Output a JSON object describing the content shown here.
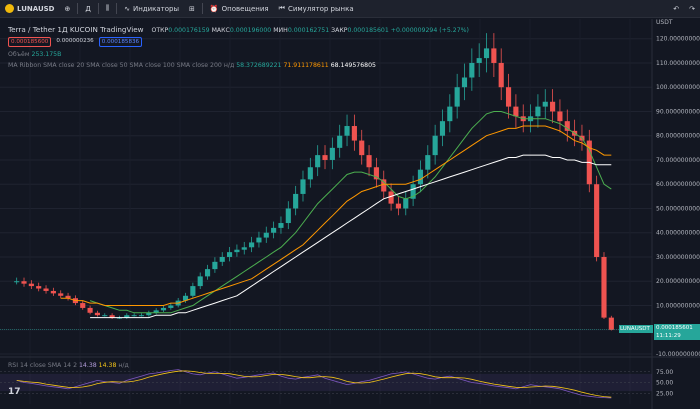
{
  "toolbar": {
    "symbol": "LUNAUSD",
    "interval": "Д",
    "indicators_label": "Индикаторы",
    "alerts_label": "Оповещения",
    "replay_label": "Симулятор рынка"
  },
  "legend": {
    "title": "Terra / Tether  1Д  KUCOIN  TradingView",
    "open_label": "ОТКР",
    "open": "0.000176159",
    "high_label": "МАКС",
    "high": "0.000196000",
    "low_label": "МИН",
    "low": "0.000162751",
    "close_label": "ЗАКР",
    "close": "0.000185601",
    "change": "+0.000009294 (+5.27%)",
    "box_sell": "0.000185600",
    "box_spread": "0.000000236",
    "box_buy": "0.000185836",
    "volume_label": "Объём",
    "volume": "253.175B",
    "ma_label": "MA Ribbon SMA close 20 SMA close 50 SMA close 100 SMA close 200",
    "ma_na": "н/д",
    "ma_50": "58.372689221",
    "ma_100": "71.911178611",
    "ma_200": "68.149576805",
    "rsi_label": "RSI 14 close SMA 14 2",
    "rsi_value": "14.38",
    "rsi_sma": "14.38",
    "rsi_na": "н/д"
  },
  "price_axis": {
    "currency": "USDT",
    "ticks": [
      "120.000000000",
      "110.000000000",
      "100.000000000",
      "90.000000000",
      "80.000000000",
      "70.000000000",
      "60.000000000",
      "50.000000000",
      "40.000000000",
      "30.000000000",
      "20.000000000",
      "10.000000000",
      "0.000000000",
      "-10.000000000"
    ]
  },
  "rsi_axis": {
    "ticks": [
      "75.00",
      "50.00",
      "25.00"
    ]
  },
  "price_tag": {
    "symbol": "LUNAUSDT",
    "price": "0.000185601",
    "countdown": "11:11:29"
  },
  "colors": {
    "up": "#26a69a",
    "down": "#ef5350",
    "ma50": "#4caf50",
    "ma100": "#ff9800",
    "ma200": "#ffffff",
    "rsi": "#7e57c2",
    "rsi_sma": "#f5c518"
  },
  "chart_data": {
    "type": "candlestick",
    "ylim": [
      -10,
      124
    ],
    "series": [
      {
        "name": "LUNAUSDT",
        "close": [
          20,
          19,
          18,
          17,
          16,
          15,
          14,
          13,
          11,
          9,
          7,
          6,
          6,
          5,
          5,
          6,
          6,
          6,
          7,
          8,
          9,
          10,
          12,
          14,
          18,
          22,
          25,
          28,
          30,
          32,
          33,
          34,
          36,
          38,
          40,
          42,
          44,
          50,
          56,
          62,
          67,
          72,
          70,
          75,
          80,
          84,
          78,
          72,
          67,
          62,
          57,
          52,
          50,
          54,
          60,
          66,
          72,
          80,
          86,
          92,
          100,
          104,
          110,
          112,
          116,
          110,
          100,
          92,
          88,
          86,
          88,
          92,
          94,
          90,
          86,
          82,
          80,
          78,
          60,
          30,
          5,
          0.0002
        ]
      },
      {
        "name": "SMA close 50",
        "values": [
          null,
          null,
          null,
          null,
          null,
          null,
          null,
          null,
          null,
          null,
          12,
          11,
          10,
          9,
          8,
          8,
          7,
          7,
          7,
          7,
          7,
          7,
          8,
          9,
          10,
          12,
          14,
          16,
          18,
          20,
          22,
          24,
          26,
          28,
          30,
          32,
          34,
          37,
          40,
          44,
          48,
          52,
          55,
          58,
          61,
          64,
          65,
          65,
          64,
          63,
          61,
          58,
          55,
          54,
          55,
          57,
          60,
          63,
          67,
          71,
          75,
          79,
          83,
          86,
          89,
          90,
          90,
          89,
          88,
          87,
          87,
          87,
          87,
          86,
          85,
          83,
          81,
          79,
          74,
          67,
          60,
          58
        ]
      },
      {
        "name": "SMA close 100",
        "values": [
          null,
          null,
          null,
          null,
          null,
          null,
          13,
          13,
          12,
          12,
          11,
          11,
          10,
          10,
          10,
          10,
          10,
          10,
          10,
          10,
          10,
          11,
          11,
          12,
          13,
          14,
          15,
          16,
          17,
          18,
          19,
          20,
          21,
          23,
          25,
          27,
          29,
          31,
          33,
          35,
          38,
          41,
          44,
          47,
          50,
          53,
          55,
          57,
          58,
          59,
          60,
          60,
          60,
          60,
          61,
          62,
          64,
          66,
          68,
          70,
          72,
          74,
          76,
          78,
          80,
          81,
          82,
          83,
          83,
          84,
          84,
          84,
          84,
          83,
          82,
          80,
          78,
          77,
          75,
          74,
          72,
          72
        ]
      },
      {
        "name": "SMA close 200",
        "values": [
          null,
          null,
          null,
          null,
          null,
          null,
          null,
          null,
          null,
          null,
          5,
          5,
          5,
          5,
          5,
          5,
          5,
          5,
          5,
          6,
          6,
          6,
          7,
          7,
          8,
          9,
          10,
          11,
          12,
          13,
          14,
          16,
          18,
          20,
          22,
          24,
          26,
          28,
          30,
          32,
          34,
          36,
          38,
          40,
          42,
          44,
          46,
          48,
          50,
          52,
          54,
          55,
          56,
          57,
          58,
          59,
          60,
          61,
          62,
          63,
          64,
          65,
          66,
          67,
          68,
          69,
          70,
          71,
          71,
          72,
          72,
          72,
          72,
          71,
          71,
          70,
          70,
          69,
          69,
          68,
          68,
          68
        ]
      }
    ],
    "rsi": [
      55,
      50,
      48,
      45,
      42,
      40,
      38,
      35,
      40,
      45,
      50,
      55,
      52,
      50,
      48,
      55,
      60,
      65,
      70,
      72,
      75,
      78,
      80,
      75,
      70,
      68,
      72,
      75,
      70,
      65,
      60,
      62,
      65,
      68,
      70,
      72,
      65,
      60,
      58,
      62,
      65,
      68,
      60,
      55,
      50,
      45,
      48,
      52,
      55,
      60,
      65,
      70,
      72,
      75,
      70,
      65,
      60,
      58,
      62,
      65,
      60,
      55,
      50,
      48,
      45,
      42,
      40,
      38,
      35,
      40,
      45,
      42,
      40,
      38,
      35,
      30,
      25,
      20,
      18,
      16,
      15,
      14
    ]
  }
}
